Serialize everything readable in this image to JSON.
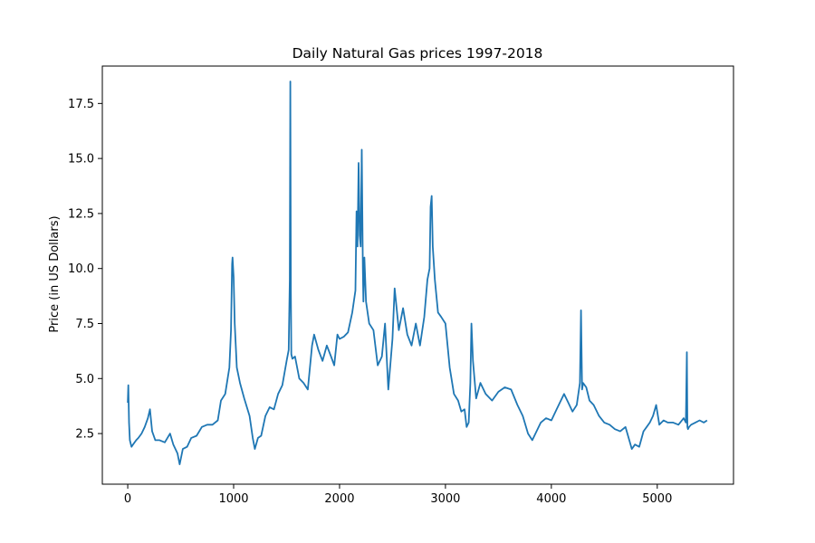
{
  "chart_data": {
    "type": "line",
    "title": "Daily Natural Gas prices 1997-2018",
    "xlabel": "",
    "ylabel": "Price (in US Dollars)",
    "xlim": [
      -240,
      5720
    ],
    "ylim": [
      0.2,
      19.2
    ],
    "xticks": [
      0,
      1000,
      2000,
      3000,
      4000,
      5000
    ],
    "xtick_labels": [
      "0",
      "1000",
      "2000",
      "3000",
      "4000",
      "5000"
    ],
    "yticks": [
      2.5,
      5.0,
      7.5,
      10.0,
      12.5,
      15.0,
      17.5
    ],
    "ytick_labels": [
      "2.5",
      "5.0",
      "7.5",
      "10.0",
      "12.5",
      "15.0",
      "17.5"
    ],
    "grid": false,
    "color": "#1f77b4",
    "series": [
      {
        "x": [
          0,
          5,
          12,
          20,
          35,
          50,
          80,
          100,
          130,
          160,
          190,
          210,
          230,
          260,
          300,
          350,
          400,
          430,
          470,
          490,
          520,
          560,
          600,
          650,
          700,
          750,
          800,
          850,
          880,
          920,
          960,
          975,
          985,
          990,
          1000,
          1010,
          1030,
          1060,
          1100,
          1150,
          1180,
          1200,
          1230,
          1260,
          1300,
          1340,
          1380,
          1420,
          1460,
          1500,
          1520,
          1530,
          1535,
          1540,
          1545,
          1555,
          1580,
          1620,
          1660,
          1700,
          1740,
          1760,
          1800,
          1840,
          1880,
          1920,
          1950,
          1980,
          2000,
          2040,
          2080,
          2120,
          2150,
          2160,
          2170,
          2180,
          2190,
          2200,
          2210,
          2220,
          2225,
          2235,
          2250,
          2280,
          2320,
          2360,
          2400,
          2430,
          2460,
          2500,
          2520,
          2560,
          2600,
          2640,
          2680,
          2720,
          2760,
          2800,
          2830,
          2850,
          2860,
          2870,
          2880,
          2900,
          2930,
          2960,
          3000,
          3040,
          3080,
          3120,
          3150,
          3180,
          3200,
          3220,
          3235,
          3245,
          3260,
          3290,
          3330,
          3380,
          3440,
          3500,
          3560,
          3620,
          3680,
          3730,
          3780,
          3820,
          3860,
          3900,
          3950,
          4000,
          4050,
          4080,
          4120,
          4160,
          4200,
          4240,
          4270,
          4280,
          4290,
          4300,
          4330,
          4360,
          4400,
          4450,
          4500,
          4550,
          4600,
          4650,
          4700,
          4730,
          4760,
          4790,
          4830,
          4870,
          4900,
          4930,
          4960,
          4990,
          5020,
          5060,
          5100,
          5150,
          5200,
          5250,
          5270,
          5280,
          5285,
          5290,
          5300,
          5320,
          5360,
          5400,
          5440,
          5470
        ],
        "y": [
          3.9,
          4.7,
          3.0,
          2.2,
          1.9,
          2.0,
          2.2,
          2.3,
          2.5,
          2.8,
          3.2,
          3.6,
          2.6,
          2.2,
          2.2,
          2.1,
          2.5,
          2.0,
          1.6,
          1.1,
          1.8,
          1.9,
          2.3,
          2.4,
          2.8,
          2.9,
          2.9,
          3.1,
          4.0,
          4.3,
          5.5,
          7.2,
          10.2,
          10.5,
          9.6,
          7.5,
          5.5,
          4.8,
          4.1,
          3.3,
          2.3,
          1.8,
          2.3,
          2.4,
          3.3,
          3.7,
          3.6,
          4.3,
          4.7,
          5.8,
          6.3,
          9.5,
          18.5,
          9.0,
          6.1,
          5.9,
          6.0,
          5.0,
          4.8,
          4.5,
          6.5,
          7.0,
          6.3,
          5.8,
          6.5,
          6.0,
          5.6,
          7.0,
          6.8,
          6.9,
          7.1,
          8.0,
          9.0,
          12.6,
          11.0,
          14.8,
          11.5,
          11.0,
          15.4,
          10.0,
          8.5,
          10.5,
          8.5,
          7.5,
          7.2,
          5.6,
          6.0,
          7.5,
          4.5,
          6.8,
          9.1,
          7.2,
          8.2,
          7.0,
          6.5,
          7.5,
          6.5,
          7.8,
          9.5,
          10.0,
          12.8,
          13.3,
          11.0,
          9.5,
          8.0,
          7.8,
          7.5,
          5.5,
          4.3,
          4.0,
          3.5,
          3.6,
          2.8,
          3.0,
          4.8,
          7.5,
          5.8,
          4.1,
          4.8,
          4.3,
          4.0,
          4.4,
          4.6,
          4.5,
          3.8,
          3.3,
          2.5,
          2.2,
          2.6,
          3.0,
          3.2,
          3.1,
          3.6,
          3.9,
          4.3,
          3.9,
          3.5,
          3.8,
          4.8,
          8.1,
          4.5,
          4.8,
          4.6,
          4.0,
          3.8,
          3.3,
          3.0,
          2.9,
          2.7,
          2.6,
          2.8,
          2.3,
          1.8,
          2.0,
          1.9,
          2.6,
          2.8,
          3.0,
          3.3,
          3.8,
          2.9,
          3.1,
          3.0,
          3.0,
          2.9,
          3.2,
          3.0,
          6.2,
          2.8,
          2.7,
          2.8,
          2.9,
          3.0,
          3.1,
          3.0,
          3.1
        ]
      }
    ]
  }
}
